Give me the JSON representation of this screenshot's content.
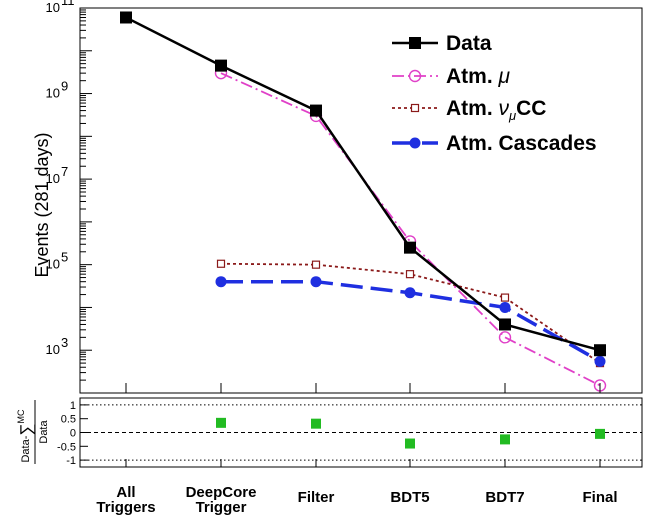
{
  "chart_data": {
    "type": "line",
    "ylabel": "Events (281 days)",
    "yscale": "log",
    "ylim": [
      100,
      100000000000
    ],
    "categories": [
      {
        "line1": "All",
        "line2": "Triggers"
      },
      {
        "line1": "DeepCore",
        "line2": "Trigger"
      },
      {
        "line1": "Filter",
        "line2": ""
      },
      {
        "line1": "BDT5",
        "line2": ""
      },
      {
        "line1": "BDT7",
        "line2": ""
      },
      {
        "line1": "Final",
        "line2": ""
      }
    ],
    "y_ticks": [
      {
        "base": "10",
        "exp": "3",
        "value": 1000
      },
      {
        "base": "10",
        "exp": "5",
        "value": 100000
      },
      {
        "base": "10",
        "exp": "7",
        "value": 10000000
      },
      {
        "base": "10",
        "exp": "9",
        "value": 1000000000
      },
      {
        "base": "10",
        "exp": "11",
        "value": 100000000000
      }
    ],
    "legend_position": "top-right",
    "series": [
      {
        "key": "data",
        "name": "Data",
        "color": "#000000",
        "marker": "square-filled",
        "line": "solid",
        "values": [
          60000000000,
          4500000000,
          400000000,
          250000,
          4000,
          1000
        ]
      },
      {
        "key": "atm_mu",
        "name_main": "Atm. ",
        "name_italic": "μ",
        "name_sub": "",
        "name_after": "",
        "color": "#e040c8",
        "marker": "circle-open",
        "line": "dash-dot",
        "values": [
          null,
          3000000000,
          300000000,
          350000,
          2000,
          150
        ]
      },
      {
        "key": "atm_numu",
        "name_main": "Atm. ",
        "name_italic": "ν",
        "name_sub": "μ",
        "name_after": "CC",
        "color": "#8b1a1a",
        "marker": "square-open",
        "line": "dotted",
        "values": [
          null,
          105000,
          100000,
          60000,
          17000,
          500
        ]
      },
      {
        "key": "atm_casc",
        "name": "Atm. Cascades",
        "color": "#1f2fe0",
        "marker": "circle-filled",
        "line": "dashed",
        "values": [
          null,
          40000,
          40000,
          22000,
          10000,
          550
        ]
      }
    ],
    "ratio_panel": {
      "ylabel_top": "Data-",
      "ylabel_sum": "∑",
      "ylabel_sup": "MC",
      "ylabel_bottom": "Data",
      "ylim": [
        -1.25,
        1.25
      ],
      "y_ticks": [
        "-1",
        "-0.5",
        "0",
        "0.5",
        "1"
      ],
      "y_tick_values": [
        -1,
        -0.5,
        0,
        0.5,
        1
      ],
      "reference_lines": [
        -1,
        0,
        1
      ],
      "marker_color": "#22bb22",
      "values": [
        null,
        0.35,
        0.32,
        -0.4,
        -0.25,
        -0.05
      ]
    }
  }
}
